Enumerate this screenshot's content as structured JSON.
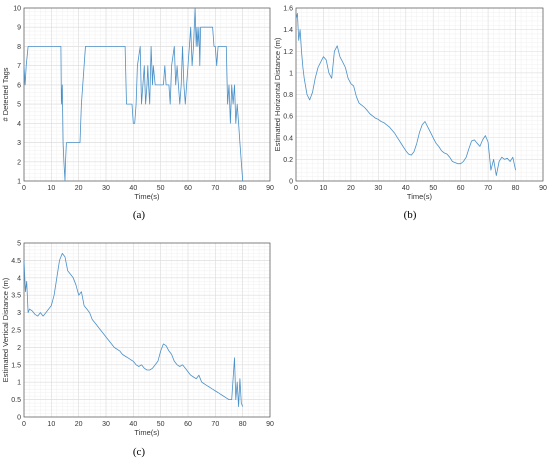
{
  "chart_data": [
    {
      "type": "line",
      "caption": "(a)",
      "xlabel": "Time(s)",
      "ylabel": "# Detected Tags",
      "xlim": [
        0,
        90
      ],
      "ylim": [
        1,
        10
      ],
      "xticks": [
        0,
        10,
        20,
        30,
        40,
        50,
        60,
        70,
        80,
        90
      ],
      "yticks": [
        1,
        2,
        3,
        4,
        5,
        6,
        7,
        8,
        9,
        10
      ],
      "grid": true,
      "series": [
        {
          "color": "#4a90c8",
          "x": [
            0,
            0.4,
            0.8,
            1.5,
            13.5,
            13.7,
            14.0,
            14.3,
            14.6,
            15.0,
            15.2,
            15.5,
            16.5,
            20.5,
            21.0,
            22.0,
            22.5,
            23.0,
            37.0,
            37.5,
            38.0,
            39.5,
            40.0,
            40.5,
            41.0,
            41.5,
            42.5,
            43.0,
            44.0,
            44.5,
            45.0,
            45.3,
            45.6,
            46.0,
            46.5,
            47.0,
            47.3,
            48.0,
            48.5,
            49.0,
            50.0,
            51.0,
            51.5,
            52.0,
            53.0,
            53.5,
            54.0,
            55.0,
            55.5,
            56.0,
            56.5,
            57.0,
            57.5,
            58.0,
            58.5,
            59.0,
            59.5,
            60.0,
            60.5,
            61.0,
            61.5,
            62.0,
            62.3,
            62.6,
            63.0,
            63.3,
            63.6,
            64.0,
            64.3,
            64.6,
            65.0,
            65.5,
            66.0,
            67.0,
            68.0,
            69.0,
            69.5,
            70.0,
            70.5,
            71.0,
            72.0,
            73.0,
            74.0,
            74.5,
            75.0,
            75.5,
            76.0,
            76.5,
            77.0,
            77.5,
            78.0,
            78.5,
            79.0,
            79.5,
            80.0
          ],
          "y": [
            7,
            6,
            7,
            8,
            8,
            5,
            6,
            3,
            2,
            1,
            2,
            3,
            3,
            3,
            5,
            7,
            8,
            8,
            8,
            5,
            5,
            5,
            4,
            4,
            5,
            7,
            8,
            5,
            7,
            5,
            6,
            7,
            6,
            5,
            8,
            6,
            7,
            6,
            6,
            6,
            6,
            6,
            7,
            6,
            6,
            5,
            7,
            8,
            6,
            7,
            6,
            5,
            6,
            8,
            6,
            5,
            6,
            7,
            8,
            9,
            7,
            8,
            9,
            10,
            8,
            9,
            8,
            9,
            7,
            9,
            9,
            9,
            9,
            9,
            9,
            9,
            8,
            8,
            7,
            8,
            8,
            8,
            8,
            5,
            6,
            4,
            6,
            5,
            6,
            4,
            5,
            4,
            3,
            2,
            1
          ]
        }
      ]
    },
    {
      "type": "line",
      "caption": "(b)",
      "xlabel": "Time(s)",
      "ylabel": "Estimated Horizontal Distance (m)",
      "xlim": [
        0,
        90
      ],
      "ylim": [
        0,
        1.6
      ],
      "xticks": [
        0,
        10,
        20,
        30,
        40,
        50,
        60,
        70,
        80,
        90
      ],
      "yticks": [
        0,
        0.2,
        0.4,
        0.6,
        0.8,
        1,
        1.2,
        1.4,
        1.6
      ],
      "grid": true,
      "series": [
        {
          "color": "#4a90c8",
          "x": [
            0,
            0.5,
            1,
            1.5,
            2,
            2.5,
            3,
            4,
            5,
            6,
            7,
            8,
            9,
            10,
            11,
            12,
            13,
            14,
            15,
            16,
            17,
            18,
            19,
            20,
            21,
            22,
            23,
            24,
            25,
            26,
            27,
            28,
            29,
            30,
            31,
            32,
            33,
            34,
            35,
            36,
            37,
            38,
            39,
            40,
            41,
            42,
            43,
            44,
            45,
            46,
            47,
            48,
            49,
            50,
            51,
            52,
            53,
            54,
            55,
            56,
            57,
            58,
            59,
            60,
            61,
            62,
            63,
            64,
            65,
            66,
            67,
            68,
            69,
            70,
            71,
            72,
            73,
            74,
            75,
            76,
            77,
            78,
            79,
            80
          ],
          "y": [
            1.5,
            1.55,
            1.3,
            1.4,
            1.2,
            1.05,
            0.95,
            0.8,
            0.75,
            0.82,
            0.95,
            1.05,
            1.1,
            1.15,
            1.12,
            1.0,
            0.95,
            1.2,
            1.25,
            1.15,
            1.1,
            1.05,
            0.95,
            0.9,
            0.88,
            0.78,
            0.72,
            0.7,
            0.68,
            0.65,
            0.62,
            0.6,
            0.58,
            0.57,
            0.55,
            0.54,
            0.52,
            0.5,
            0.47,
            0.44,
            0.4,
            0.36,
            0.32,
            0.28,
            0.25,
            0.24,
            0.27,
            0.35,
            0.45,
            0.52,
            0.55,
            0.5,
            0.45,
            0.4,
            0.35,
            0.32,
            0.28,
            0.26,
            0.25,
            0.22,
            0.18,
            0.17,
            0.16,
            0.16,
            0.18,
            0.22,
            0.3,
            0.37,
            0.38,
            0.35,
            0.32,
            0.38,
            0.42,
            0.36,
            0.1,
            0.2,
            0.05,
            0.18,
            0.22,
            0.2,
            0.21,
            0.18,
            0.22,
            0.1
          ]
        }
      ]
    },
    {
      "type": "line",
      "caption": "(c)",
      "xlabel": "Time(s)",
      "ylabel": "Estimated Vertical Distance (m)",
      "xlim": [
        0,
        90
      ],
      "ylim": [
        0,
        5
      ],
      "xticks": [
        0,
        10,
        20,
        30,
        40,
        50,
        60,
        70,
        80,
        90
      ],
      "yticks": [
        0,
        0.5,
        1,
        1.5,
        2,
        2.5,
        3,
        3.5,
        4,
        4.5,
        5
      ],
      "grid": true,
      "series": [
        {
          "color": "#4a90c8",
          "x": [
            0,
            0.5,
            1,
            1.5,
            2,
            3,
            4,
            5,
            6,
            7,
            8,
            9,
            10,
            11,
            12,
            13,
            14,
            15,
            16,
            17,
            18,
            19,
            20,
            21,
            22,
            23,
            24,
            25,
            26,
            27,
            28,
            29,
            30,
            31,
            32,
            33,
            34,
            35,
            36,
            37,
            38,
            39,
            40,
            41,
            42,
            43,
            44,
            45,
            46,
            47,
            48,
            49,
            50,
            51,
            52,
            53,
            54,
            55,
            56,
            57,
            58,
            59,
            60,
            61,
            62,
            63,
            64,
            65,
            66,
            67,
            68,
            69,
            70,
            71,
            72,
            73,
            74,
            75,
            76,
            77,
            77.5,
            78,
            78.5,
            79,
            79.5,
            80
          ],
          "y": [
            4.5,
            3.6,
            3.9,
            3.0,
            3.1,
            3.05,
            2.95,
            2.9,
            3.0,
            2.9,
            3.0,
            3.1,
            3.2,
            3.5,
            4.0,
            4.5,
            4.7,
            4.6,
            4.2,
            4.1,
            4.0,
            3.8,
            3.5,
            3.6,
            3.2,
            3.1,
            3.0,
            2.8,
            2.7,
            2.6,
            2.5,
            2.4,
            2.3,
            2.2,
            2.1,
            2.0,
            1.95,
            1.9,
            1.8,
            1.75,
            1.7,
            1.65,
            1.6,
            1.5,
            1.45,
            1.5,
            1.4,
            1.35,
            1.35,
            1.4,
            1.5,
            1.6,
            1.9,
            2.1,
            2.05,
            1.9,
            1.8,
            1.6,
            1.5,
            1.45,
            1.5,
            1.4,
            1.3,
            1.2,
            1.15,
            1.1,
            1.2,
            1.0,
            0.95,
            0.9,
            0.85,
            0.8,
            0.75,
            0.7,
            0.65,
            0.6,
            0.55,
            0.5,
            0.5,
            1.7,
            0.5,
            1.0,
            0.3,
            1.1,
            0.4,
            0.3
          ]
        }
      ]
    }
  ]
}
